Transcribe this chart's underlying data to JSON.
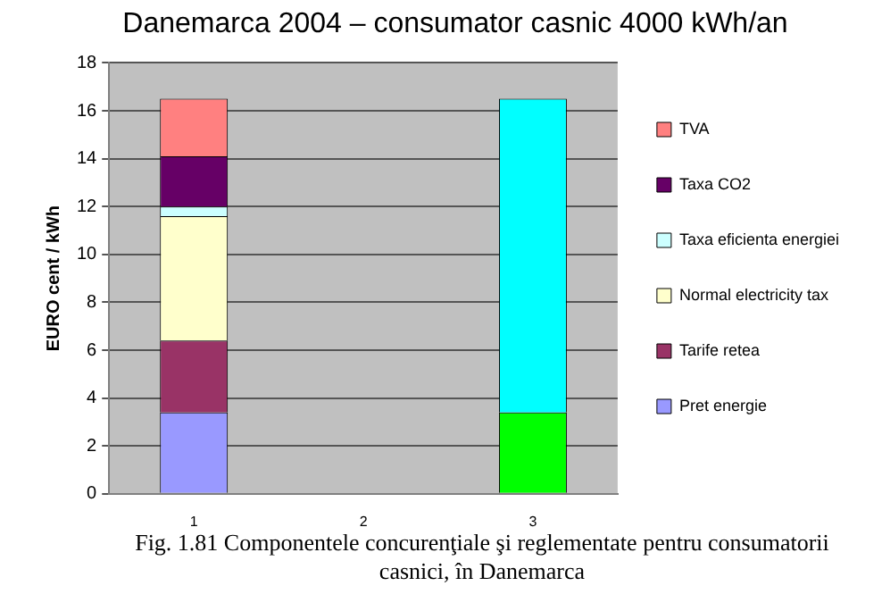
{
  "chart_data": {
    "type": "bar",
    "title": "Danemarca 2004 – consumator casnic 4000 kWh/an",
    "ylabel": "EURO cent / kWh",
    "categories": [
      "1",
      "2",
      "3"
    ],
    "stacked": true,
    "ylim": [
      0,
      18
    ],
    "yticks": [
      0,
      2,
      4,
      6,
      8,
      10,
      12,
      14,
      16,
      18
    ],
    "grid": "y",
    "legend": "right",
    "series": [
      {
        "name": "Pret energie",
        "color": "#9999ff",
        "values": [
          3.4,
          null,
          null
        ]
      },
      {
        "name": "Tarife retea",
        "color": "#993366",
        "values": [
          3.0,
          null,
          null
        ]
      },
      {
        "name": "Normal electricity tax",
        "color": "#ffffcc",
        "values": [
          5.2,
          null,
          null
        ]
      },
      {
        "name": "Taxa eficienta energiei",
        "color": "#ccffff",
        "values": [
          0.4,
          null,
          null
        ]
      },
      {
        "name": "Taxa CO2",
        "color": "#660066",
        "values": [
          2.1,
          null,
          null
        ]
      },
      {
        "name": "TVA",
        "color": "#ff8080",
        "values": [
          2.4,
          null,
          null
        ]
      },
      {
        "color": "#00ff00",
        "values": [
          null,
          null,
          3.4
        ]
      },
      {
        "color": "#00ffff",
        "values": [
          null,
          null,
          13.1
        ]
      }
    ],
    "annotations": [
      "Fig. 1.81 Componentele concurenţiale şi reglementate pentru consumatorii casnici, în Danemarca"
    ]
  }
}
